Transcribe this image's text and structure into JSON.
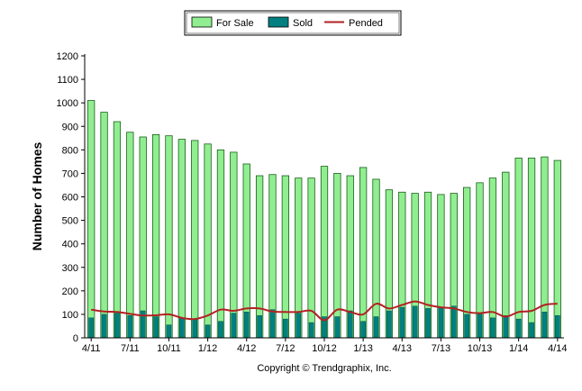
{
  "chart_data": {
    "type": "bar",
    "ylabel": "Number of Homes",
    "ylim": [
      0,
      1200
    ],
    "y_ticks": [
      "0",
      "100",
      "200",
      "300",
      "400",
      "500",
      "600",
      "700",
      "800",
      "900",
      "1000",
      "1100",
      "1200"
    ],
    "x_ticks": [
      {
        "label": "4/11",
        "index": 0
      },
      {
        "label": "7/11",
        "index": 3
      },
      {
        "label": "10/11",
        "index": 6
      },
      {
        "label": "1/12",
        "index": 9
      },
      {
        "label": "4/12",
        "index": 12
      },
      {
        "label": "7/12",
        "index": 15
      },
      {
        "label": "10/12",
        "index": 18
      },
      {
        "label": "1/13",
        "index": 21
      },
      {
        "label": "4/13",
        "index": 24
      },
      {
        "label": "7/13",
        "index": 27
      },
      {
        "label": "10/13",
        "index": 30
      },
      {
        "label": "1/14",
        "index": 33
      },
      {
        "label": "4/14",
        "index": 36
      }
    ],
    "legend_position": "top-center",
    "series": [
      {
        "name": "For Sale",
        "kind": "bar",
        "color": "#90ee90",
        "values": [
          1010,
          960,
          920,
          875,
          855,
          865,
          860,
          845,
          840,
          825,
          800,
          790,
          740,
          690,
          695,
          690,
          680,
          680,
          730,
          700,
          690,
          725,
          675,
          630,
          620,
          615,
          620,
          610,
          615,
          640,
          660,
          680,
          705,
          765,
          765,
          770,
          755
        ]
      },
      {
        "name": "Sold",
        "kind": "bar",
        "color": "#008080",
        "values": [
          85,
          100,
          105,
          95,
          115,
          90,
          55,
          85,
          80,
          55,
          70,
          105,
          110,
          95,
          120,
          80,
          105,
          65,
          90,
          90,
          115,
          70,
          90,
          115,
          130,
          135,
          125,
          130,
          135,
          100,
          100,
          85,
          95,
          80,
          65,
          110,
          95
        ]
      },
      {
        "name": "Pended",
        "kind": "line",
        "color": "#b22222",
        "values": [
          120,
          112,
          110,
          102,
          95,
          96,
          100,
          85,
          80,
          95,
          120,
          115,
          125,
          125,
          112,
          110,
          110,
          115,
          75,
          120,
          110,
          100,
          145,
          125,
          140,
          155,
          140,
          130,
          125,
          110,
          105,
          110,
          90,
          110,
          115,
          140,
          145
        ]
      }
    ]
  },
  "legend": {
    "for_sale": "For Sale",
    "sold": "Sold",
    "pended": "Pended"
  },
  "footer": {
    "copyright": "Copyright © Trendgraphix, Inc."
  },
  "colors": {
    "for_sale_fill": "#90ee90",
    "sold_fill": "#008080",
    "pended_line": "#b22222",
    "axis": "#000000"
  }
}
